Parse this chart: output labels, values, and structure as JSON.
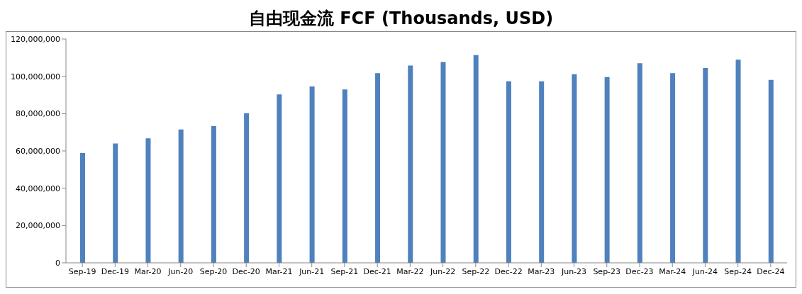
{
  "chart_data": {
    "type": "bar",
    "title": "自由现金流 FCF (Thousands, USD)",
    "categories": [
      "Sep-19",
      "Dec-19",
      "Mar-20",
      "Jun-20",
      "Sep-20",
      "Dec-20",
      "Mar-21",
      "Jun-21",
      "Sep-21",
      "Dec-21",
      "Mar-22",
      "Jun-22",
      "Sep-22",
      "Dec-22",
      "Mar-23",
      "Jun-23",
      "Sep-23",
      "Dec-23",
      "Mar-24",
      "Jun-24",
      "Sep-24",
      "Dec-24"
    ],
    "values": [
      58900000,
      64000000,
      66700000,
      71500000,
      73300000,
      80200000,
      90300000,
      94600000,
      92900000,
      101700000,
      105800000,
      107700000,
      111400000,
      97300000,
      97300000,
      101100000,
      99600000,
      107000000,
      101700000,
      104400000,
      108900000,
      98100000
    ],
    "color": "#4f81bd",
    "ylim": [
      0,
      120000000
    ],
    "yticks": [
      0,
      {
        "value": 20000000,
        "label": "20,000,000"
      },
      {
        "value": 40000000,
        "label": "40,000,000"
      },
      {
        "value": 60000000,
        "label": "60,000,000"
      },
      {
        "value": 80000000,
        "label": "80,000,000"
      },
      {
        "value": 100000000,
        "label": "100,000,000"
      },
      {
        "value": 120000000,
        "label": "120,000,000"
      }
    ],
    "grid": false,
    "legend": false
  }
}
